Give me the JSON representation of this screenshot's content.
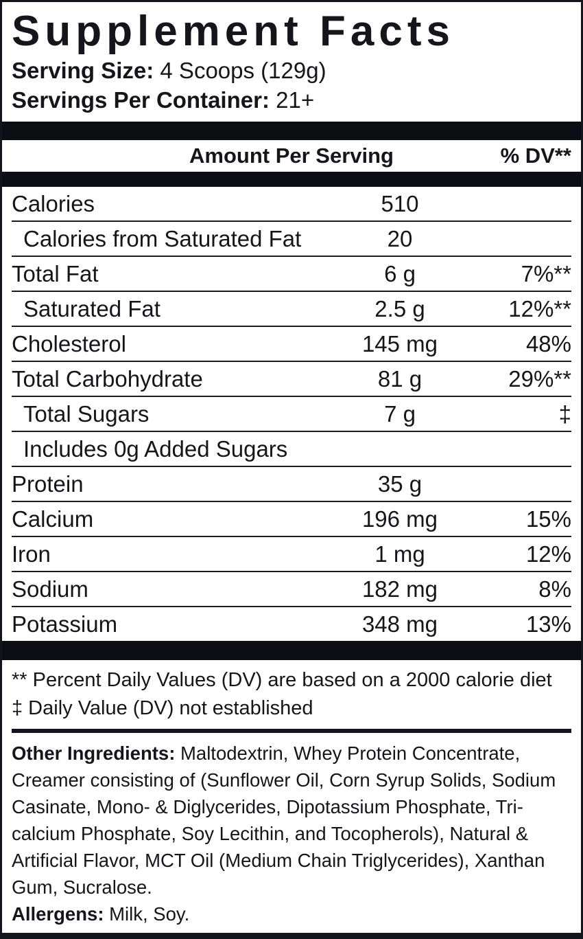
{
  "label": {
    "title": "Supplement Facts",
    "serving_size_label": "Serving Size:",
    "serving_size_value": "4 Scoops (129g)",
    "servings_per_container_label": "Servings Per Container:",
    "servings_per_container_value": "21+"
  },
  "table": {
    "amount_header": "Amount Per Serving",
    "dv_header": "% DV**",
    "rows": [
      {
        "name": "Calories",
        "amount": "510",
        "dv": "",
        "indent": false
      },
      {
        "name": "Calories from Saturated Fat",
        "amount": "20",
        "dv": "",
        "indent": true
      },
      {
        "name": "Total Fat",
        "amount": "6 g",
        "dv": "7%**",
        "indent": false
      },
      {
        "name": "Saturated Fat",
        "amount": "2.5 g",
        "dv": "12%**",
        "indent": true
      },
      {
        "name": "Cholesterol",
        "amount": "145 mg",
        "dv": "48%",
        "indent": false
      },
      {
        "name": "Total Carbohydrate",
        "amount": "81 g",
        "dv": "29%**",
        "indent": false
      },
      {
        "name": "Total Sugars",
        "amount": "7 g",
        "dv": "‡",
        "indent": true
      },
      {
        "name": "Includes 0g Added Sugars",
        "amount": "",
        "dv": "",
        "indent": true
      },
      {
        "name": "Protein",
        "amount": "35 g",
        "dv": "",
        "indent": false
      },
      {
        "name": "Calcium",
        "amount": "196 mg",
        "dv": "15%",
        "indent": false
      },
      {
        "name": "Iron",
        "amount": "1 mg",
        "dv": "12%",
        "indent": false
      },
      {
        "name": "Sodium",
        "amount": "182 mg",
        "dv": "8%",
        "indent": false
      },
      {
        "name": "Potassium",
        "amount": "348 mg",
        "dv": "13%",
        "indent": false
      }
    ]
  },
  "footnotes": [
    "** Percent Daily Values (DV) are based on a 2000 calorie diet",
    "‡ Daily Value (DV) not established"
  ],
  "other_ingredients": {
    "label": "Other Ingredients:",
    "text": "Maltodextrin, Whey Protein Concentrate, Creamer consisting of (Sunflower Oil, Corn Syrup Solids, Sodium Casinate, Mono- & Diglycerides, Dipotassium Phosphate, Tri-calcium Phosphate, Soy Lecithin, and Tocopherols), Natural & Artificial Flavor, MCT Oil (Medium Chain Triglycerides), Xanthan Gum, Sucralose."
  },
  "allergens": {
    "label": "Allergens:",
    "text": "Milk, Soy."
  },
  "colors": {
    "ink": "#15151b",
    "bar": "#0c0e14",
    "background": "#ffffff"
  }
}
